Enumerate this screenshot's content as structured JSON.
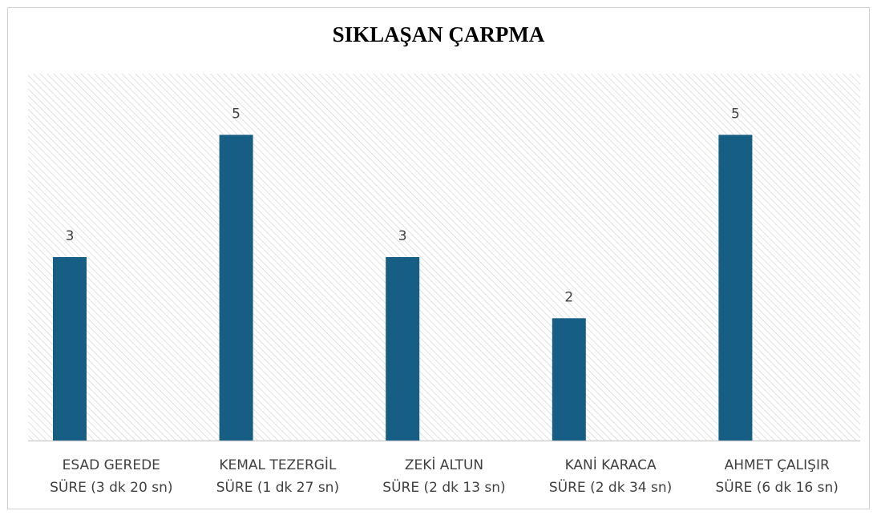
{
  "chart_data": {
    "type": "bar",
    "title": "SIKLAŞAN ÇARPMA",
    "categories": [
      [
        "ESAD GEREDE",
        "SÜRE (3 dk 20 sn)"
      ],
      [
        "KEMAL TEZERGİL",
        "SÜRE (1 dk 27 sn)"
      ],
      [
        "ZEKİ ALTUN",
        "SÜRE (2 dk 13 sn)"
      ],
      [
        "KANİ KARACA",
        "SÜRE (2 dk 34 sn)"
      ],
      [
        "AHMET ÇALIŞIR",
        "SÜRE (6 dk 16 sn)"
      ]
    ],
    "values": [
      3,
      5,
      3,
      2,
      5
    ],
    "color": "#165e83",
    "ylim": [
      0,
      6
    ]
  }
}
